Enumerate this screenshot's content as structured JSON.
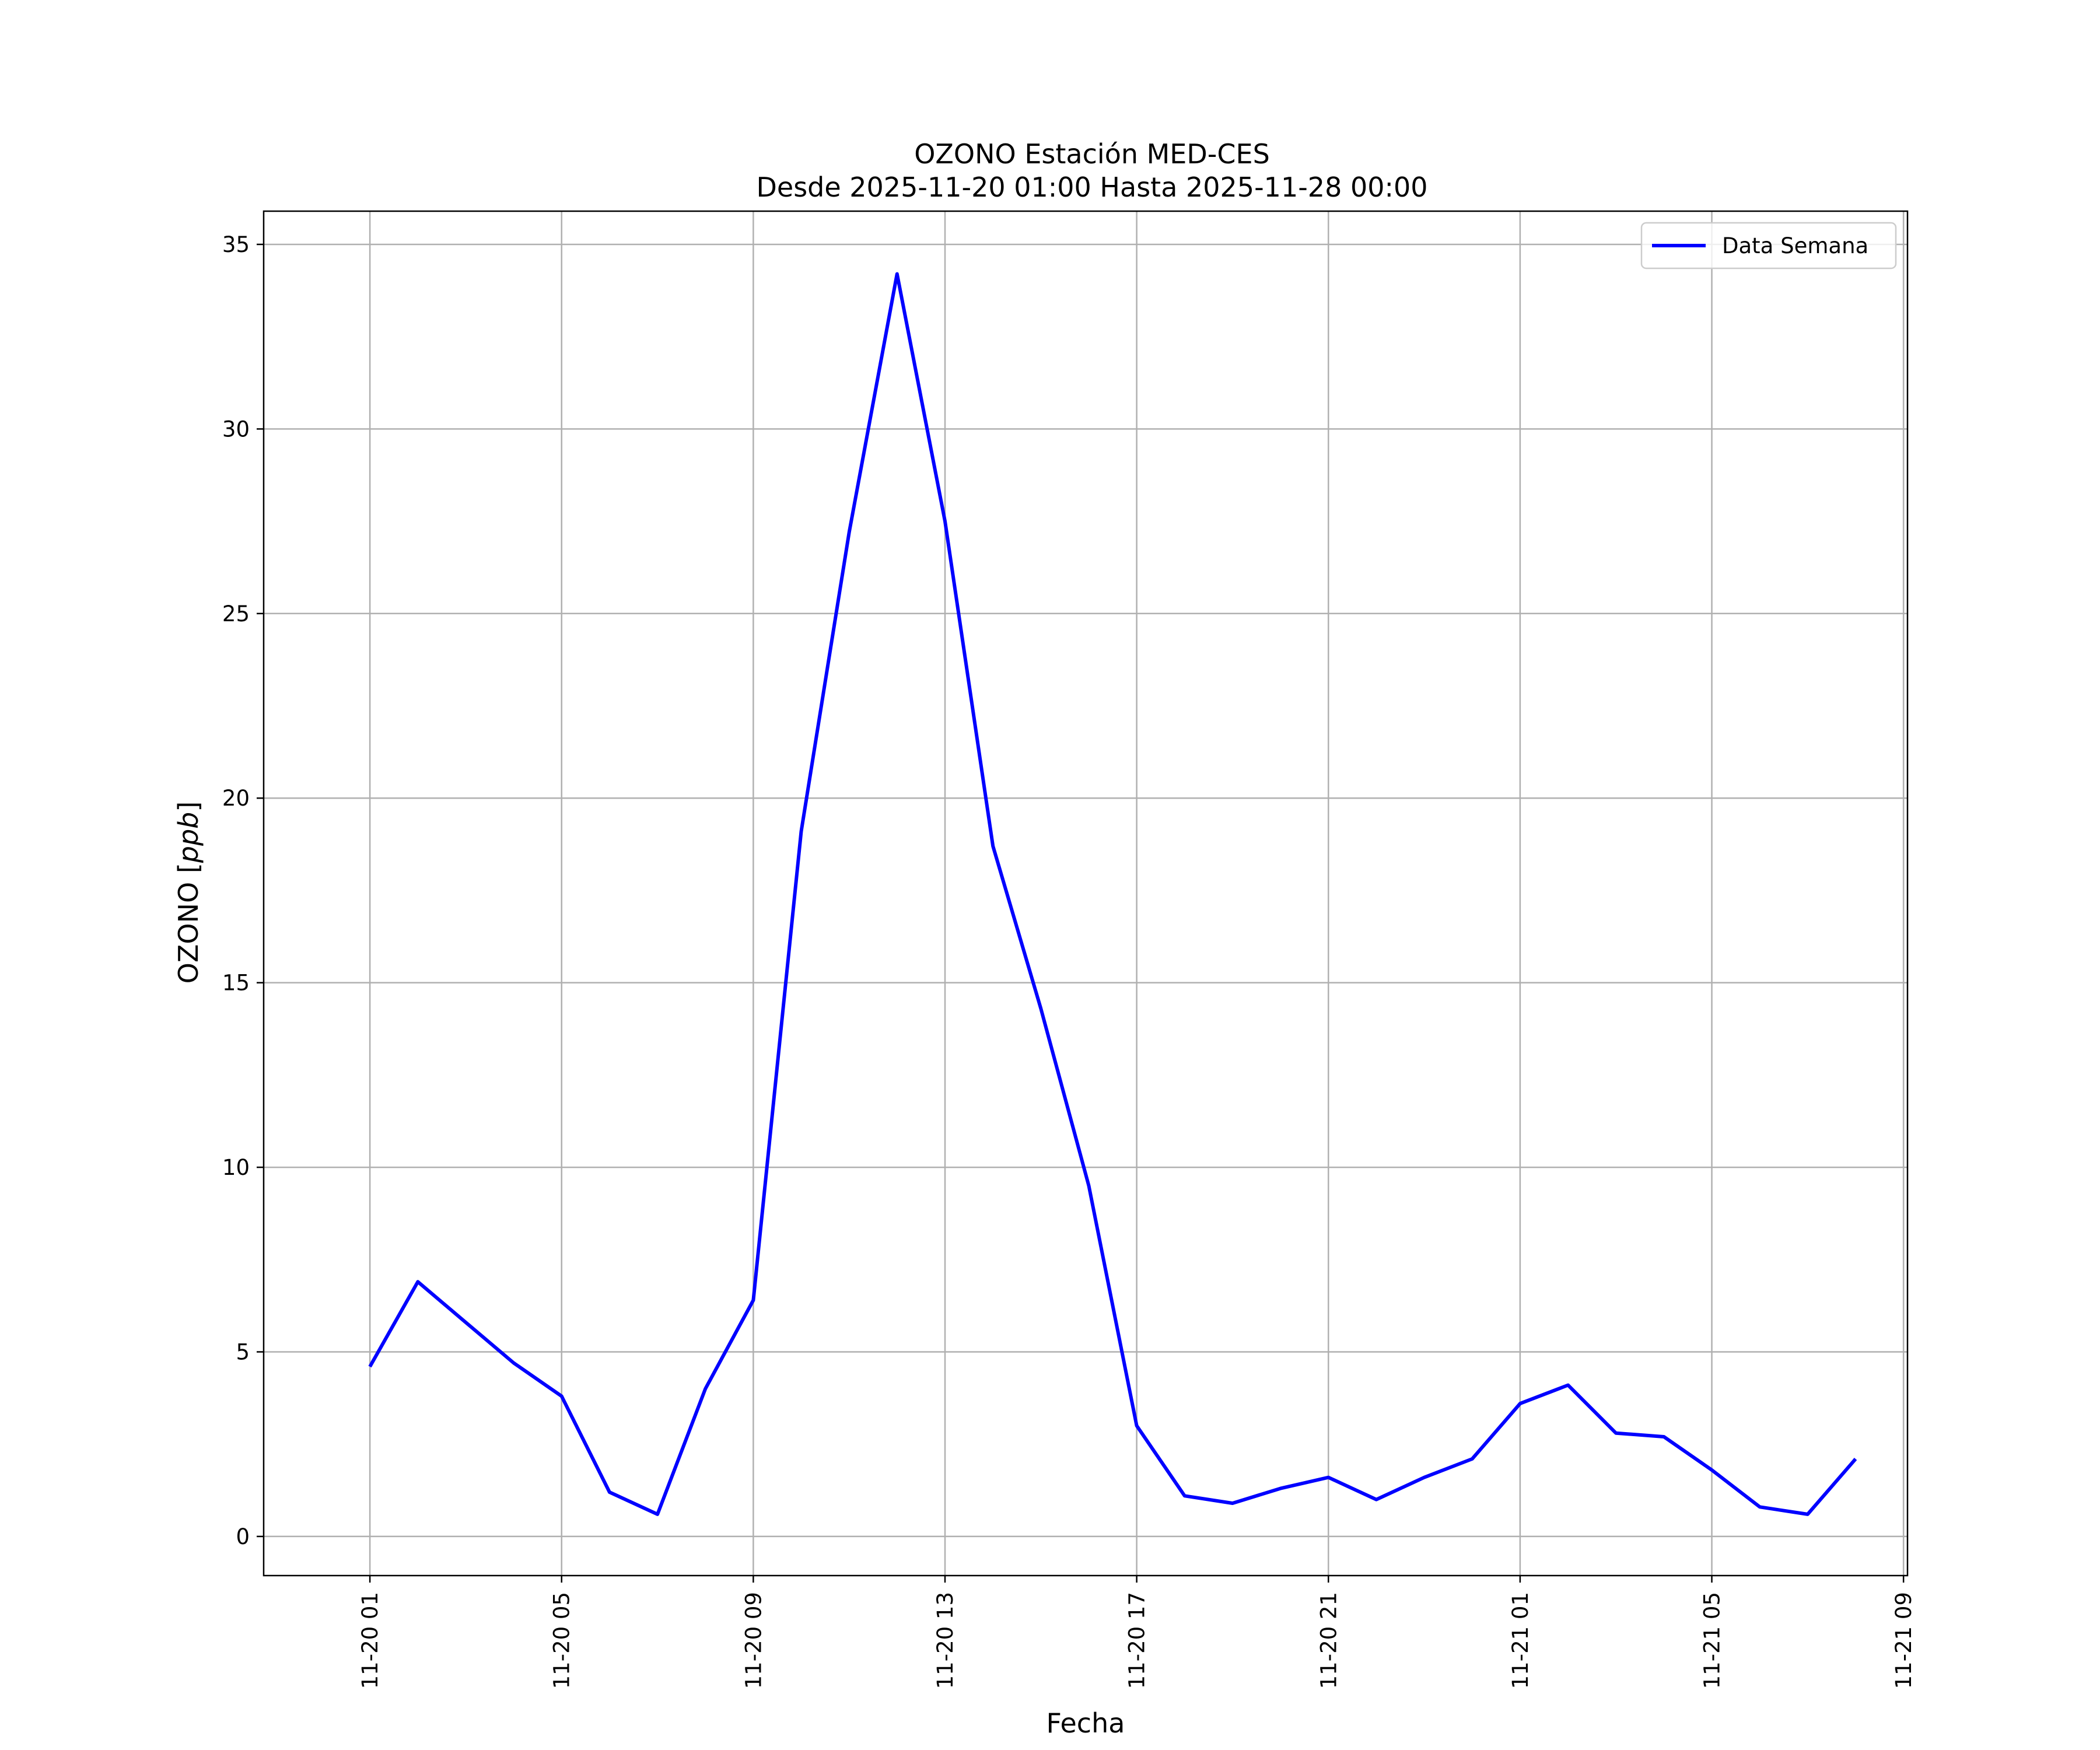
{
  "chart_data": {
    "type": "line",
    "title": "OZONO Estación MED-CES",
    "subtitle": "Desde 2025-11-20 01:00 Hasta 2025-11-28 00:00",
    "xlabel": "Fecha",
    "ylabel_text": "OZONO [",
    "ylabel_unit": "ppb",
    "ylabel_close": "]",
    "x_tick_labels": [
      "11-20 01",
      "11-20 05",
      "11-20 09",
      "11-20 13",
      "11-20 17",
      "11-20 21",
      "11-21 01",
      "11-21 05",
      "11-21 09"
    ],
    "x_tick_values": [
      "2025-11-20 01:00",
      "2025-11-20 05:00",
      "2025-11-20 09:00",
      "2025-11-20 13:00",
      "2025-11-20 17:00",
      "2025-11-20 21:00",
      "2025-11-21 01:00",
      "2025-11-21 05:00",
      "2025-11-21 09:00"
    ],
    "y_ticks": [
      0,
      5,
      10,
      15,
      20,
      25,
      30,
      35
    ],
    "xlim": [
      "2025-11-19 22:47",
      "2025-11-21 09:05"
    ],
    "ylim": [
      -1.06,
      35.9
    ],
    "grid": true,
    "legend_position": "upper right",
    "series": [
      {
        "name": "Data Semana",
        "color": "#0000ff",
        "x": [
          "2025-11-20 01:00",
          "2025-11-20 02:00",
          "2025-11-20 03:00",
          "2025-11-20 04:00",
          "2025-11-20 05:00",
          "2025-11-20 06:00",
          "2025-11-20 07:00",
          "2025-11-20 08:00",
          "2025-11-20 09:00",
          "2025-11-20 10:00",
          "2025-11-20 11:00",
          "2025-11-20 12:00",
          "2025-11-20 13:00",
          "2025-11-20 14:00",
          "2025-11-20 15:00",
          "2025-11-20 16:00",
          "2025-11-20 17:00",
          "2025-11-20 18:00",
          "2025-11-20 19:00",
          "2025-11-20 20:00",
          "2025-11-20 21:00",
          "2025-11-20 22:00",
          "2025-11-20 23:00",
          "2025-11-21 00:00",
          "2025-11-21 01:00",
          "2025-11-21 02:00",
          "2025-11-21 03:00",
          "2025-11-21 04:00",
          "2025-11-21 05:00",
          "2025-11-21 06:00",
          "2025-11-21 07:00",
          "2025-11-21 08:00"
        ],
        "values": [
          4.6,
          6.9,
          5.8,
          4.7,
          3.8,
          1.2,
          0.6,
          4.0,
          6.4,
          19.1,
          27.2,
          34.2,
          27.5,
          18.7,
          14.3,
          9.5,
          3.0,
          1.1,
          0.9,
          1.3,
          1.6,
          1.0,
          1.6,
          2.1,
          3.6,
          4.1,
          2.8,
          2.7,
          1.8,
          0.8,
          0.6,
          2.1
        ]
      }
    ]
  }
}
